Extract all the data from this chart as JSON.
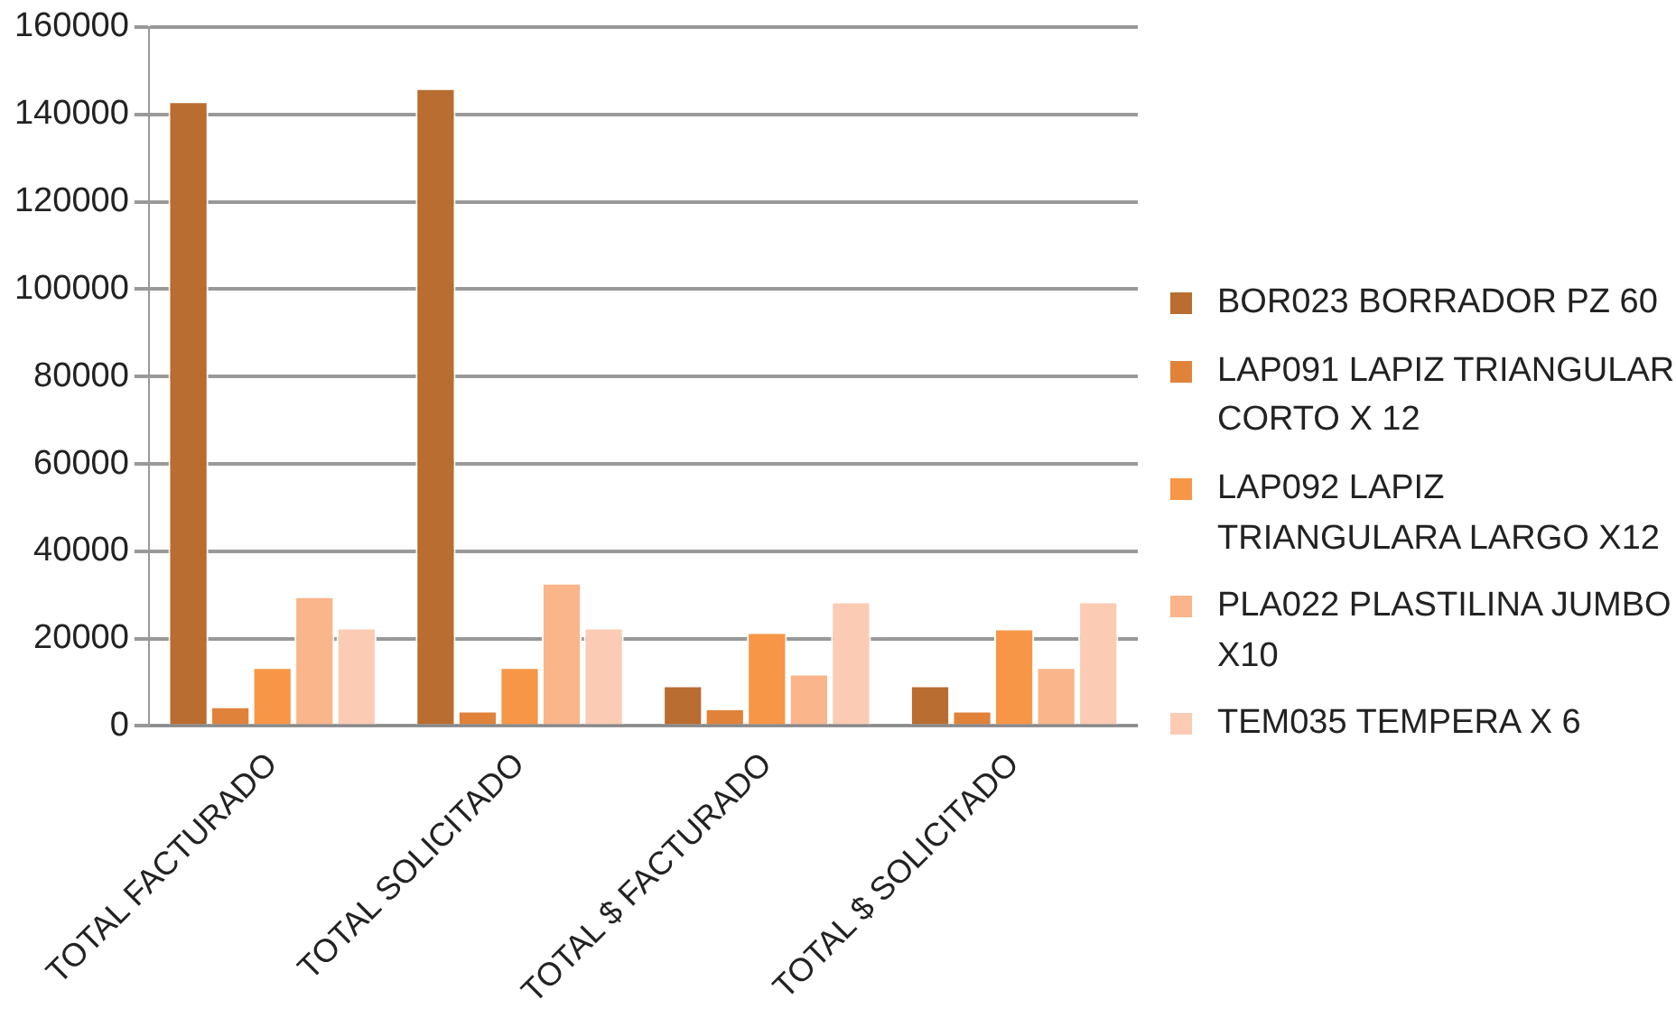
{
  "chart_data": {
    "type": "bar",
    "categories": [
      "TOTAL FACTURADO",
      "TOTAL SOLICITADO",
      "TOTAL $ FACTURADO",
      "TOTAL $ SOLICITADO"
    ],
    "series": [
      {
        "name": "BOR023 BORRADOR PZ 60",
        "color": "#b96d30",
        "values": [
          143000,
          146000,
          9300,
          9300
        ]
      },
      {
        "name": "LAP091 LAPIZ TRIANGULAR CORTO X 12",
        "color": "#e0823a",
        "values": [
          4500,
          3500,
          4000,
          3500
        ]
      },
      {
        "name": "LAP092 LAPIZ TRIANGULARA LARGO X12",
        "color": "#f79646",
        "values": [
          13500,
          13500,
          21500,
          22300
        ]
      },
      {
        "name": "PLA022 PLASTILINA JUMBO X10",
        "color": "#fab58a",
        "values": [
          29700,
          32800,
          12000,
          13500
        ]
      },
      {
        "name": "TEM035 TEMPERA X 6",
        "color": "#fccbb4",
        "values": [
          22500,
          22500,
          28500,
          28500
        ]
      }
    ],
    "ylim": [
      0,
      160000
    ],
    "yticks": [
      0,
      20000,
      40000,
      60000,
      80000,
      100000,
      120000,
      140000,
      160000
    ],
    "grid": "y",
    "legend": "right"
  }
}
